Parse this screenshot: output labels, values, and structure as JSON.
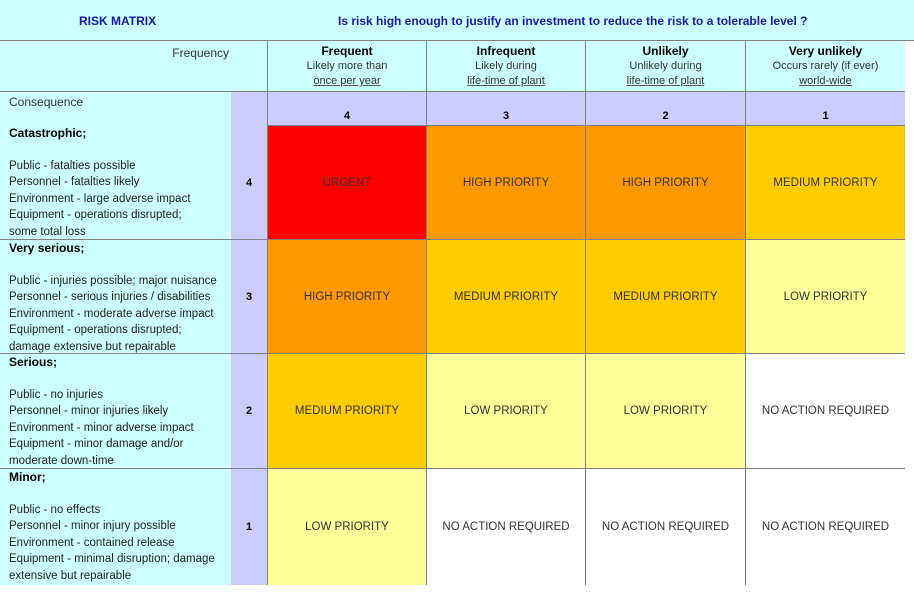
{
  "header": {
    "title": "RISK MATRIX",
    "question": "Is risk high enough to justify an investment to reduce the risk to a tolerable level ?"
  },
  "frequency": {
    "label": "Frequency",
    "columns": [
      {
        "title": "Frequent",
        "line1": "Likely more than",
        "line2": "once per year",
        "rank": "4"
      },
      {
        "title": "Infrequent",
        "line1": "Likely during",
        "line2": "life-time of plant",
        "rank": "3"
      },
      {
        "title": "Unlikely",
        "line1": "Unlikely during",
        "line2": "life-time of plant",
        "rank": "2"
      },
      {
        "title": "Very unlikely",
        "line1": "Occurs rarely (if ever)",
        "line2": "world-wide",
        "rank": "1"
      }
    ]
  },
  "consequence": {
    "label": "Consequence",
    "rows": [
      {
        "rank": "4",
        "title": "Catastrophic;",
        "lines": [
          "Public - fatalties possible",
          "Personnel - fatalties likely",
          "Environment - large adverse impact",
          "Equipment - operations disrupted;",
          "some total loss"
        ],
        "cells": [
          "URGENT",
          "HIGH PRIORITY",
          "HIGH PRIORITY",
          "MEDIUM PRIORITY"
        ]
      },
      {
        "rank": "3",
        "title": "Very serious;",
        "lines": [
          "Public - injuries possible; major nuisance",
          "Personnel - serious injuries / disabilities",
          "Environment - moderate adverse impact",
          "Equipment - operations disrupted;",
          "damage extensive but repairable"
        ],
        "cells": [
          "HIGH PRIORITY",
          "MEDIUM PRIORITY",
          "MEDIUM PRIORITY",
          "LOW PRIORITY"
        ]
      },
      {
        "rank": "2",
        "title": "Serious;",
        "lines": [
          "Public - no injuries",
          "Personnel - minor injuries likely",
          "Environment - minor adverse impact",
          "Equipment - minor damage and/or",
          "moderate down-time"
        ],
        "cells": [
          "MEDIUM PRIORITY",
          "LOW PRIORITY",
          "LOW PRIORITY",
          "NO ACTION REQUIRED"
        ]
      },
      {
        "rank": "1",
        "title": "Minor;",
        "lines": [
          "Public - no effects",
          "Personnel - minor injury possible",
          "Environment - contained release",
          "Equipment - minimal disruption; damage",
          "extensive but repairable"
        ],
        "cells": [
          "LOW PRIORITY",
          "NO ACTION REQUIRED",
          "NO ACTION REQUIRED",
          "NO ACTION REQUIRED"
        ]
      }
    ]
  },
  "colors": {
    "urgent": "#ff0000",
    "high": "#ff9900",
    "medium": "#ffcc00",
    "low": "#ffff99",
    "none": "#ffffff",
    "header_bg": "#ccffff",
    "rank_bg": "#ccccff",
    "title_text": "#1a1aa6"
  }
}
